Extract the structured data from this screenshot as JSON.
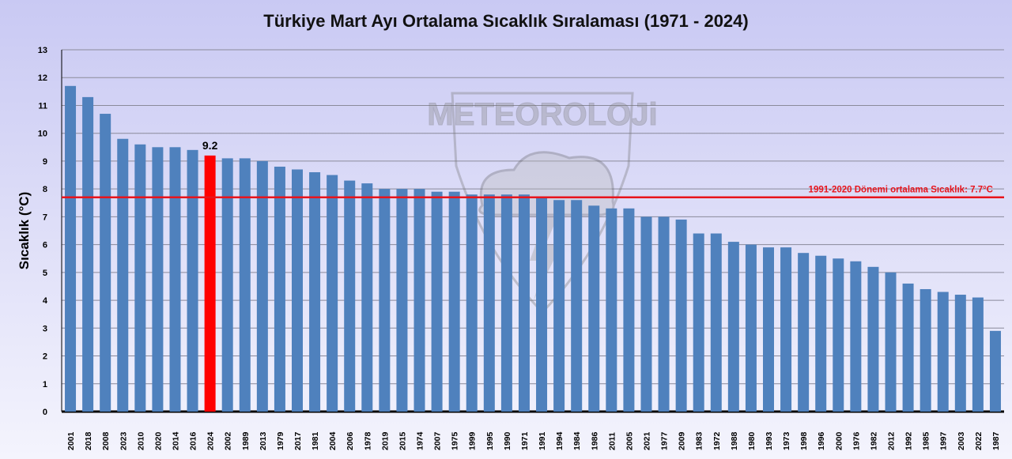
{
  "chart_data": {
    "type": "bar",
    "title": "Türkiye Mart Ayı Ortalama Sıcaklık Sıralaması (1971 - 2024)",
    "xlabel": "",
    "ylabel": "Sıcaklık (°C)",
    "ylim": [
      0,
      13
    ],
    "yticks": [
      "0",
      "1",
      "2",
      "3",
      "4",
      "5",
      "6",
      "7",
      "8",
      "9",
      "10",
      "11",
      "12",
      "13"
    ],
    "grid": true,
    "categories": [
      "2001",
      "2018",
      "2008",
      "2023",
      "2010",
      "2020",
      "2014",
      "2016",
      "2024",
      "2002",
      "1989",
      "2013",
      "1979",
      "2017",
      "1981",
      "2004",
      "2006",
      "1978",
      "2019",
      "2015",
      "1974",
      "2007",
      "1975",
      "1999",
      "1995",
      "1990",
      "1971",
      "1991",
      "1994",
      "1984",
      "1986",
      "2011",
      "2005",
      "2021",
      "1977",
      "2009",
      "1983",
      "1972",
      "1988",
      "1980",
      "1993",
      "1973",
      "1998",
      "1996",
      "2000",
      "1976",
      "1982",
      "2012",
      "1992",
      "1985",
      "1997",
      "2003",
      "2022",
      "1987"
    ],
    "values": [
      11.7,
      11.3,
      10.7,
      9.8,
      9.6,
      9.5,
      9.5,
      9.4,
      9.2,
      9.1,
      9.1,
      9.0,
      8.8,
      8.7,
      8.6,
      8.5,
      8.3,
      8.2,
      8.0,
      8.0,
      8.0,
      7.9,
      7.9,
      7.8,
      7.8,
      7.8,
      7.8,
      7.7,
      7.6,
      7.6,
      7.4,
      7.3,
      7.3,
      7.0,
      7.0,
      6.9,
      6.4,
      6.4,
      6.1,
      6.0,
      5.9,
      5.9,
      5.7,
      5.6,
      5.5,
      5.4,
      5.2,
      5.0,
      4.6,
      4.4,
      4.3,
      4.2,
      4.1,
      2.9
    ],
    "highlight": {
      "category": "2024",
      "label": "9.2",
      "color": "#ff0000"
    },
    "bar_color": "#4f81bd",
    "reference_line": {
      "value": 7.7,
      "label": "1991-2020 Dönemi ortalama Sıcaklık: 7.7°C",
      "color": "#e8141c"
    },
    "watermark": "METEOROLOJİ"
  }
}
